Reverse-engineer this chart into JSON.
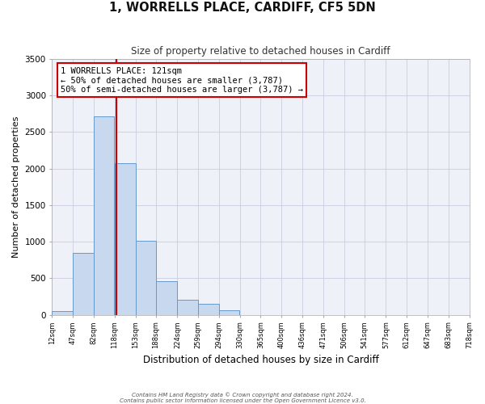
{
  "title": "1, WORRELLS PLACE, CARDIFF, CF5 5DN",
  "subtitle": "Size of property relative to detached houses in Cardiff",
  "xlabel": "Distribution of detached houses by size in Cardiff",
  "ylabel": "Number of detached properties",
  "bar_left_edges": [
    12,
    47,
    82,
    118,
    153,
    188,
    224,
    259,
    294,
    330,
    365,
    400,
    436,
    471,
    506,
    541,
    577,
    612,
    647,
    683
  ],
  "bar_widths": [
    35,
    35,
    35,
    35,
    35,
    35,
    35,
    35,
    35,
    35,
    35,
    35,
    35,
    35,
    35,
    35,
    35,
    35,
    35,
    35
  ],
  "bar_heights": [
    55,
    850,
    2720,
    2070,
    1010,
    455,
    210,
    145,
    60,
    0,
    0,
    0,
    0,
    0,
    0,
    0,
    0,
    0,
    0,
    0
  ],
  "bar_color": "#c8d8ee",
  "bar_edge_color": "#6699cc",
  "tick_labels": [
    "12sqm",
    "47sqm",
    "82sqm",
    "118sqm",
    "153sqm",
    "188sqm",
    "224sqm",
    "259sqm",
    "294sqm",
    "330sqm",
    "365sqm",
    "400sqm",
    "436sqm",
    "471sqm",
    "506sqm",
    "541sqm",
    "577sqm",
    "612sqm",
    "647sqm",
    "683sqm",
    "718sqm"
  ],
  "tick_positions": [
    12,
    47,
    82,
    118,
    153,
    188,
    224,
    259,
    294,
    330,
    365,
    400,
    436,
    471,
    506,
    541,
    577,
    612,
    647,
    683,
    718
  ],
  "ylim": [
    0,
    3500
  ],
  "xlim": [
    12,
    718
  ],
  "property_line_x": 121,
  "property_line_color": "#cc0000",
  "annotation_text": "1 WORRELLS PLACE: 121sqm\n← 50% of detached houses are smaller (3,787)\n50% of semi-detached houses are larger (3,787) →",
  "annotation_box_color": "#ffffff",
  "annotation_box_edge_color": "#cc0000",
  "grid_color": "#ccccdd",
  "background_color": "#ffffff",
  "axes_bg_color": "#eef2f8",
  "footer_line1": "Contains HM Land Registry data © Crown copyright and database right 2024.",
  "footer_line2": "Contains public sector information licensed under the Open Government Licence v3.0."
}
